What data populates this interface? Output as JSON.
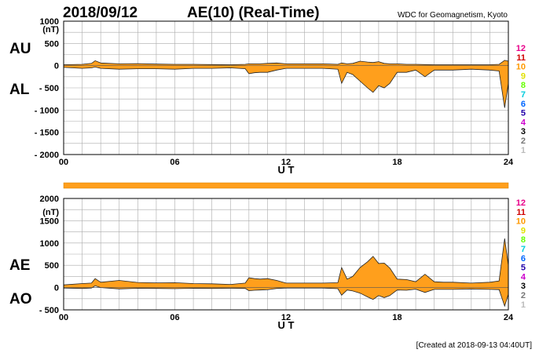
{
  "header": {
    "date": "2018/09/12",
    "title": "AE(10) (Real-Time)",
    "source": "WDC for Geomagnetism, Kyoto"
  },
  "footer": {
    "created": "[Created at 2018-09-13 04:40UT]"
  },
  "legend_numbers": [
    {
      "label": "12",
      "color": "#e8008a"
    },
    {
      "label": "11",
      "color": "#d00000"
    },
    {
      "label": "10",
      "color": "#ff9900"
    },
    {
      "label": "9",
      "color": "#e0e000"
    },
    {
      "label": "8",
      "color": "#66ff00"
    },
    {
      "label": "7",
      "color": "#00ccdd"
    },
    {
      "label": "6",
      "color": "#0066ff"
    },
    {
      "label": "5",
      "color": "#2200aa"
    },
    {
      "label": "4",
      "color": "#cc00cc"
    },
    {
      "label": "3",
      "color": "#000000"
    },
    {
      "label": "2",
      "color": "#777777"
    },
    {
      "label": "1",
      "color": "#bbbbbb"
    }
  ],
  "fill_color": "#ff9f1c",
  "chart_data": [
    {
      "type": "area",
      "series_labels": [
        "AU",
        "AL"
      ],
      "xlabel": "U T",
      "ylabel": "(nT)",
      "ylim": [
        -2000,
        1000
      ],
      "y_ticks": [
        "1000",
        "500",
        "0",
        "- 500",
        "- 1000",
        "- 1500",
        "- 2000"
      ],
      "y_tick_values": [
        1000,
        500,
        0,
        -500,
        -1000,
        -1500,
        -2000
      ],
      "xlim": [
        0,
        24
      ],
      "x_ticks": [
        "00",
        "06",
        "12",
        "18",
        "24"
      ],
      "x_tick_values": [
        0,
        6,
        12,
        18,
        24
      ],
      "grid": true,
      "series": [
        {
          "name": "AU",
          "x": [
            0,
            1,
            1.5,
            1.7,
            2,
            3,
            4,
            5,
            6,
            7,
            8,
            9,
            9.8,
            10,
            10.3,
            10.6,
            11,
            11.5,
            12,
            13,
            14,
            14.8,
            15,
            15.3,
            15.6,
            16,
            16.4,
            16.7,
            17,
            17.3,
            17.6,
            18,
            18.5,
            19,
            19.5,
            20,
            20.5,
            21,
            22,
            23,
            23.5,
            23.8,
            24
          ],
          "y": [
            20,
            30,
            50,
            110,
            60,
            40,
            45,
            35,
            30,
            30,
            25,
            20,
            30,
            40,
            40,
            40,
            50,
            60,
            40,
            40,
            40,
            30,
            60,
            40,
            50,
            100,
            80,
            70,
            90,
            50,
            40,
            40,
            30,
            30,
            25,
            20,
            20,
            20,
            20,
            20,
            30,
            120,
            100
          ]
        },
        {
          "name": "AL",
          "x": [
            0,
            1,
            1.5,
            1.7,
            2,
            3,
            4,
            5,
            6,
            7,
            8,
            9,
            9.8,
            10,
            10.3,
            10.6,
            11,
            11.5,
            12,
            13,
            14,
            14.8,
            15,
            15.3,
            15.6,
            16,
            16.4,
            16.7,
            17,
            17.3,
            17.6,
            18,
            18.5,
            19,
            19.5,
            20,
            20.5,
            21,
            22,
            23,
            23.5,
            23.8,
            24
          ],
          "y": [
            -40,
            -60,
            -50,
            -30,
            -60,
            -80,
            -70,
            -70,
            -80,
            -60,
            -60,
            -50,
            -70,
            -180,
            -160,
            -150,
            -150,
            -100,
            -60,
            -60,
            -60,
            -80,
            -400,
            -150,
            -200,
            -350,
            -500,
            -600,
            -450,
            -500,
            -400,
            -150,
            -150,
            -100,
            -250,
            -100,
            -100,
            -100,
            -80,
            -100,
            -120,
            -950,
            -400
          ]
        }
      ]
    },
    {
      "type": "area",
      "series_labels": [
        "AE",
        "AO"
      ],
      "xlabel": "U T",
      "ylabel": "(nT)",
      "ylim": [
        -500,
        2000
      ],
      "y_ticks": [
        "2000",
        "1500",
        "1000",
        "500",
        "0",
        "- 500"
      ],
      "y_tick_values": [
        2000,
        1500,
        1000,
        500,
        0,
        -500
      ],
      "xlim": [
        0,
        24
      ],
      "x_ticks": [
        "00",
        "06",
        "12",
        "18",
        "24"
      ],
      "x_tick_values": [
        0,
        6,
        12,
        18,
        24
      ],
      "grid": true,
      "series": [
        {
          "name": "AE",
          "x": [
            0,
            1,
            1.5,
            1.7,
            2,
            3,
            4,
            5,
            6,
            7,
            8,
            9,
            9.8,
            10,
            10.3,
            10.6,
            11,
            11.5,
            12,
            13,
            14,
            14.8,
            15,
            15.3,
            15.6,
            16,
            16.4,
            16.7,
            17,
            17.3,
            17.6,
            18,
            18.5,
            19,
            19.5,
            20,
            20.5,
            21,
            22,
            23,
            23.5,
            23.8,
            24
          ],
          "y": [
            60,
            90,
            100,
            200,
            120,
            160,
            115,
            105,
            110,
            90,
            85,
            70,
            100,
            220,
            200,
            190,
            200,
            160,
            100,
            100,
            100,
            110,
            450,
            190,
            250,
            450,
            580,
            700,
            540,
            550,
            440,
            190,
            180,
            130,
            300,
            130,
            120,
            120,
            100,
            120,
            150,
            1100,
            500
          ]
        },
        {
          "name": "AO",
          "x": [
            0,
            1,
            1.5,
            1.7,
            2,
            3,
            4,
            5,
            6,
            7,
            8,
            9,
            9.8,
            10,
            10.3,
            10.6,
            11,
            11.5,
            12,
            13,
            14,
            14.8,
            15,
            15.3,
            15.6,
            16,
            16.4,
            16.7,
            17,
            17.3,
            17.6,
            18,
            18.5,
            19,
            19.5,
            20,
            20.5,
            21,
            22,
            23,
            23.5,
            23.8,
            24
          ],
          "y": [
            -10,
            -20,
            -10,
            40,
            0,
            -30,
            -15,
            -20,
            -25,
            -15,
            -20,
            -15,
            -20,
            -70,
            -60,
            -55,
            -50,
            -20,
            -10,
            -10,
            -10,
            -25,
            -170,
            -55,
            -75,
            -125,
            -210,
            -265,
            -180,
            -225,
            -180,
            -55,
            -60,
            -35,
            -110,
            -40,
            -40,
            -40,
            -30,
            -40,
            -45,
            -415,
            -150
          ]
        }
      ]
    }
  ]
}
